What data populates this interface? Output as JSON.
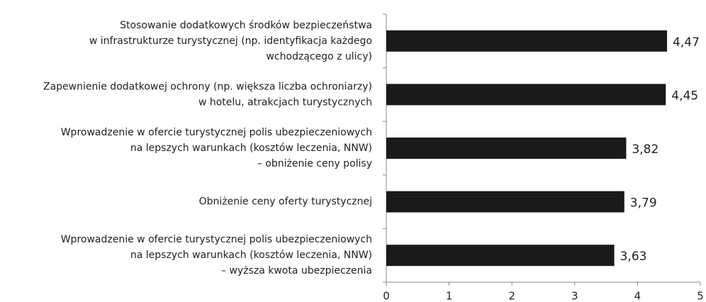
{
  "chart_data": {
    "type": "bar",
    "orientation": "horizontal",
    "categories": [
      [
        "Stosowanie dodatkowych środków bezpieczeństwa",
        "w infrastrukturze turystycznej (np. identyfikacja każdego",
        "wchodzącego z ulicy)"
      ],
      [
        "Zapewnienie dodatkowej ochrony (np. większa liczba ochroniarzy)",
        "w hotelu, atrakcjach turystycznych"
      ],
      [
        "Wprowadzenie w ofercie turystycznej polis ubezpieczeniowych",
        "na lepszych warunkach (kosztów leczenia, NNW)",
        "– obniżenie ceny polisy"
      ],
      [
        "Obniżenie ceny oferty turystycznej"
      ],
      [
        "Wprowadzenie w ofercie turystycznej polis ubezpieczeniowych",
        "na lepszych warunkach (kosztów leczenia, NNW)",
        "– wyższa kwota ubezpieczenia"
      ]
    ],
    "values": [
      4.47,
      4.45,
      3.82,
      3.79,
      3.63
    ],
    "value_labels": [
      "4,47",
      "4,45",
      "3,82",
      "3,79",
      "3,63"
    ],
    "color": "#1a1a1a",
    "xlim": [
      0,
      5
    ],
    "xticks": [
      0,
      1,
      2,
      3,
      4,
      5
    ],
    "grid": false
  }
}
